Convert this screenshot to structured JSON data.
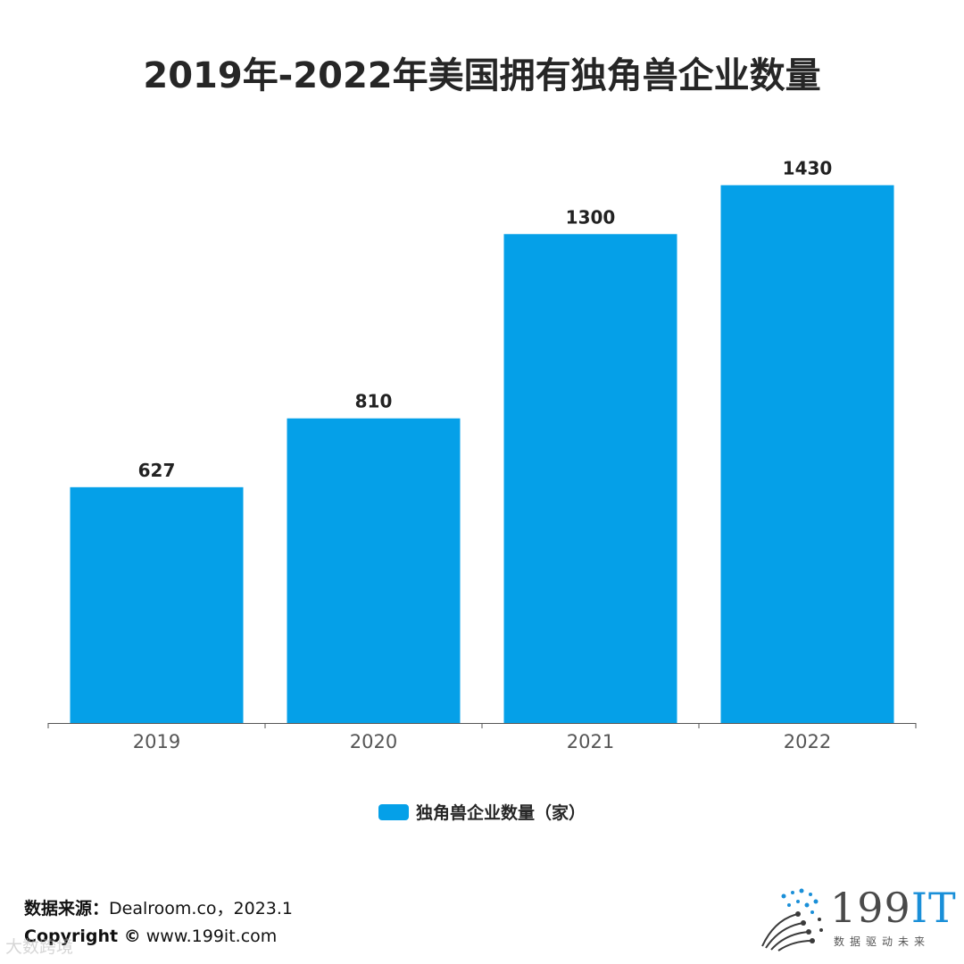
{
  "title": "2019年-2022年美国拥有独角兽企业数量",
  "legend": {
    "label": "独角兽企业数量（家）",
    "color": "#05a0e8"
  },
  "footer": {
    "source_label": "数据来源：",
    "source_value": "Dealroom.co，2023.1",
    "copyright_label": "Copyright ©",
    "copyright_value": "www.199it.com"
  },
  "watermark": "大数跨境",
  "brand": {
    "name_main": "199",
    "name_accent": "IT",
    "tagline": "数据驱动未来"
  },
  "colors": {
    "bar": "#05a0e8",
    "axis": "#555555"
  },
  "chart_data": {
    "type": "bar",
    "title": "2019年-2022年美国拥有独角兽企业数量",
    "categories": [
      "2019",
      "2020",
      "2021",
      "2022"
    ],
    "series": [
      {
        "name": "独角兽企业数量（家）",
        "values": [
          627,
          810,
          1300,
          1430
        ]
      }
    ],
    "xlabel": "",
    "ylabel": "",
    "ylim": [
      0,
      1500
    ],
    "grid": false,
    "legend_position": "bottom",
    "data_labels": true
  }
}
